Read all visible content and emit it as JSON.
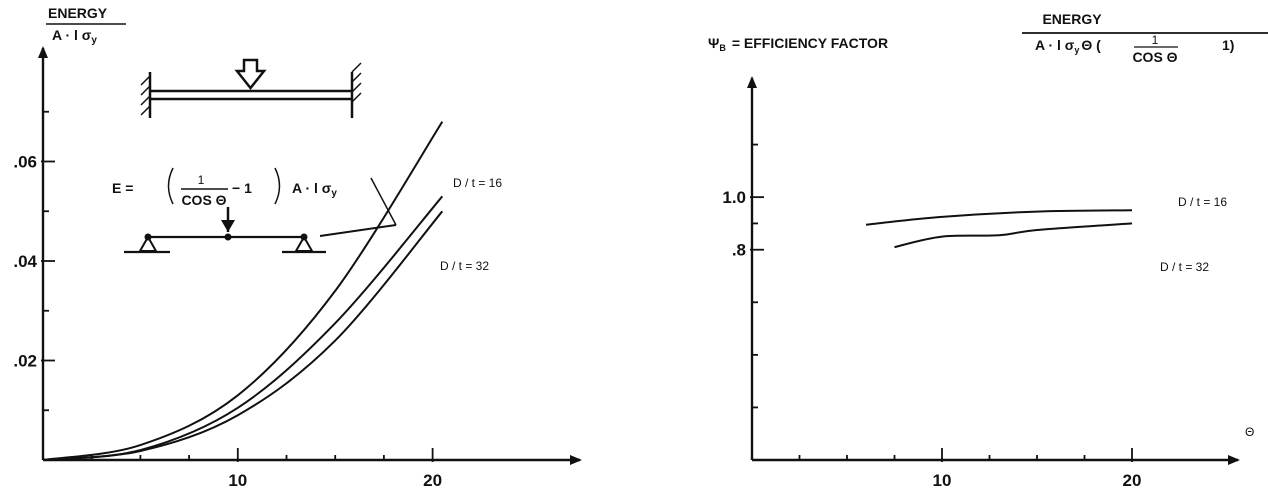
{
  "chart_data": [
    {
      "type": "line",
      "ylabel_num": "ENERGY",
      "ylabel_den": "A · l σ",
      "ylabel_den_sub": "y",
      "formula": {
        "lhs": "E =",
        "num": "1",
        "den": "COS Θ",
        "minus": "− 1",
        "rhs": "A · l σ",
        "rhs_sub": "y"
      },
      "xlim": [
        0,
        25
      ],
      "ylim": [
        0,
        0.08
      ],
      "x_ticks": [
        {
          "value": 10,
          "label": "10"
        },
        {
          "value": 20,
          "label": "20"
        }
      ],
      "y_ticks": [
        {
          "value": 0.02,
          "label": ".02"
        },
        {
          "value": 0.04,
          "label": ".04"
        },
        {
          "value": 0.06,
          "label": ".06"
        }
      ],
      "series": [
        {
          "name": "E",
          "x": [
            0,
            5,
            10,
            15,
            20.5
          ],
          "y": [
            0,
            0.003,
            0.013,
            0.034,
            0.068
          ]
        },
        {
          "name": "D / t = 16",
          "x": [
            0,
            5,
            10,
            15,
            20.5
          ],
          "y": [
            0,
            0.002,
            0.0105,
            0.0275,
            0.053
          ]
        },
        {
          "name": "D / t = 32",
          "x": [
            0,
            5,
            10,
            15,
            20.5
          ],
          "y": [
            0,
            0.0018,
            0.009,
            0.024,
            0.05
          ]
        }
      ],
      "series_labels": [
        "D / t = 16",
        "D / t = 32"
      ]
    },
    {
      "type": "line",
      "title_prefix": "Ψ",
      "title_sub": "B",
      "title_text": "= EFFICIENCY FACTOR",
      "formula": {
        "num": "ENERGY",
        "den": "A · l σ",
        "den_sub": "y",
        "den_rest": "Θ (",
        "frac_num": "1",
        "frac_den": "COS Θ",
        "tail": "1)"
      },
      "xlabel": "Θ",
      "xlim": [
        0,
        25
      ],
      "ylim": [
        0,
        1.4
      ],
      "x_ticks": [
        {
          "value": 10,
          "label": "10"
        },
        {
          "value": 20,
          "label": "20"
        }
      ],
      "y_ticks": [
        {
          "value": 0.8,
          "label": ".8"
        },
        {
          "value": 1.0,
          "label": "1.0"
        }
      ],
      "series": [
        {
          "name": "D / t = 16",
          "x": [
            6,
            10,
            15,
            20
          ],
          "y": [
            0.895,
            0.925,
            0.945,
            0.95
          ]
        },
        {
          "name": "D / t = 32",
          "x": [
            7.5,
            10,
            13,
            15,
            20
          ],
          "y": [
            0.81,
            0.85,
            0.855,
            0.875,
            0.9
          ]
        }
      ]
    }
  ]
}
